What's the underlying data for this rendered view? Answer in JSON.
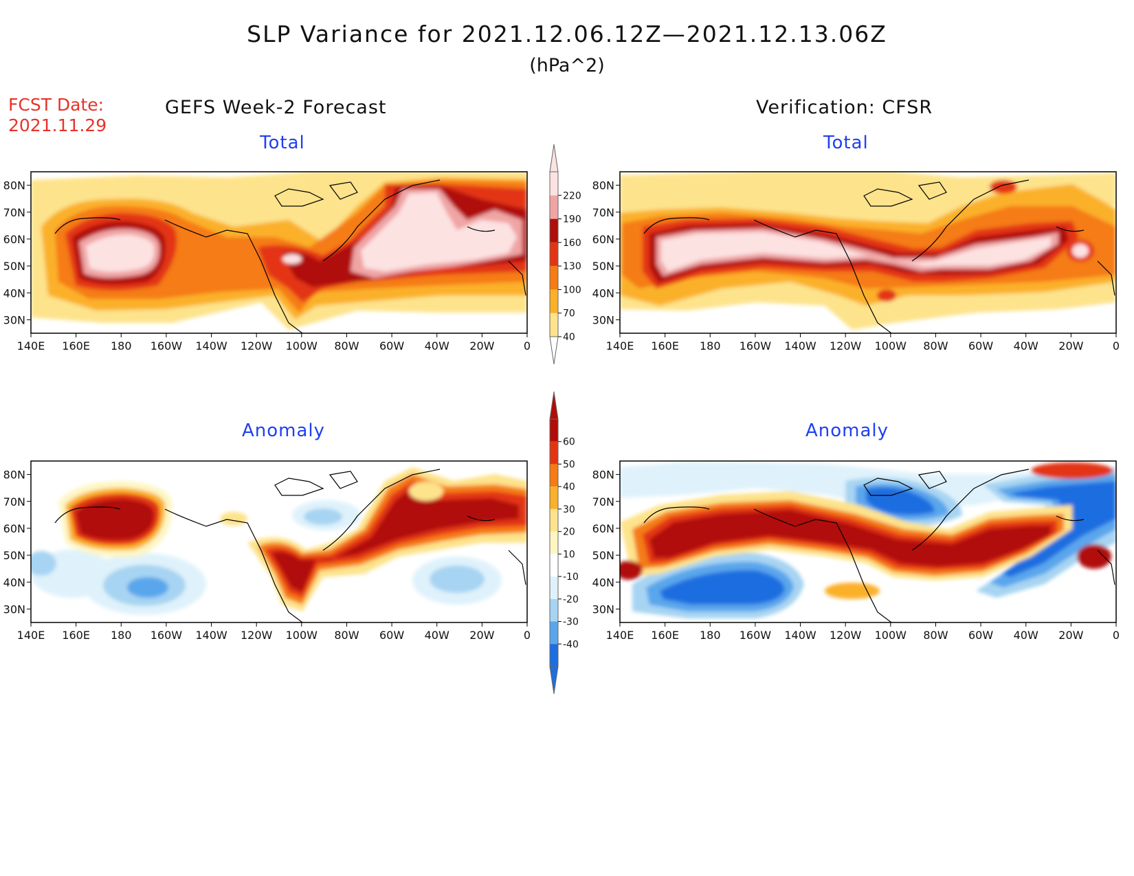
{
  "header": {
    "title": "SLP Variance for 2021.12.06.12Z—2021.12.13.06Z",
    "units": "(hPa^2)",
    "fcst_date_label": "FCST Date:",
    "fcst_date_value": "2021.11.29"
  },
  "columns": {
    "left_title": "GEFS Week-2 Forecast",
    "right_title": "Verification: CFSR"
  },
  "panels": {
    "forecast_total_title": "Total",
    "verification_total_title": "Total",
    "forecast_anomaly_title": "Anomaly",
    "verification_anomaly_title": "Anomaly"
  },
  "axes": {
    "lon_labels": [
      "140E",
      "160E",
      "180",
      "160W",
      "140W",
      "120W",
      "100W",
      "80W",
      "60W",
      "40W",
      "20W",
      "0"
    ],
    "lat_labels": [
      "30N",
      "40N",
      "50N",
      "60N",
      "70N",
      "80N"
    ]
  },
  "colorbars": {
    "total": {
      "levels": [
        "40",
        "70",
        "100",
        "130",
        "160",
        "190",
        "220"
      ],
      "colors": [
        "#fde38b",
        "#fbb02a",
        "#f57b12",
        "#e33412",
        "#b00e0a",
        "#f0a5a5",
        "#fde2e2"
      ]
    },
    "anomaly": {
      "levels": [
        "60",
        "50",
        "40",
        "30",
        "20",
        "10",
        "-10",
        "-20",
        "-30",
        "-40"
      ],
      "colors": [
        "#b10c08",
        "#e33412",
        "#f57b12",
        "#fbb02a",
        "#fde38b",
        "#fdf6c3",
        "#ffffff",
        "#dff2fb",
        "#a7d4f2",
        "#5aa6ec",
        "#1d6ee0"
      ]
    }
  },
  "colors": {
    "title_red": "#e8322a",
    "panel_blue": "#1f3ff0"
  }
}
